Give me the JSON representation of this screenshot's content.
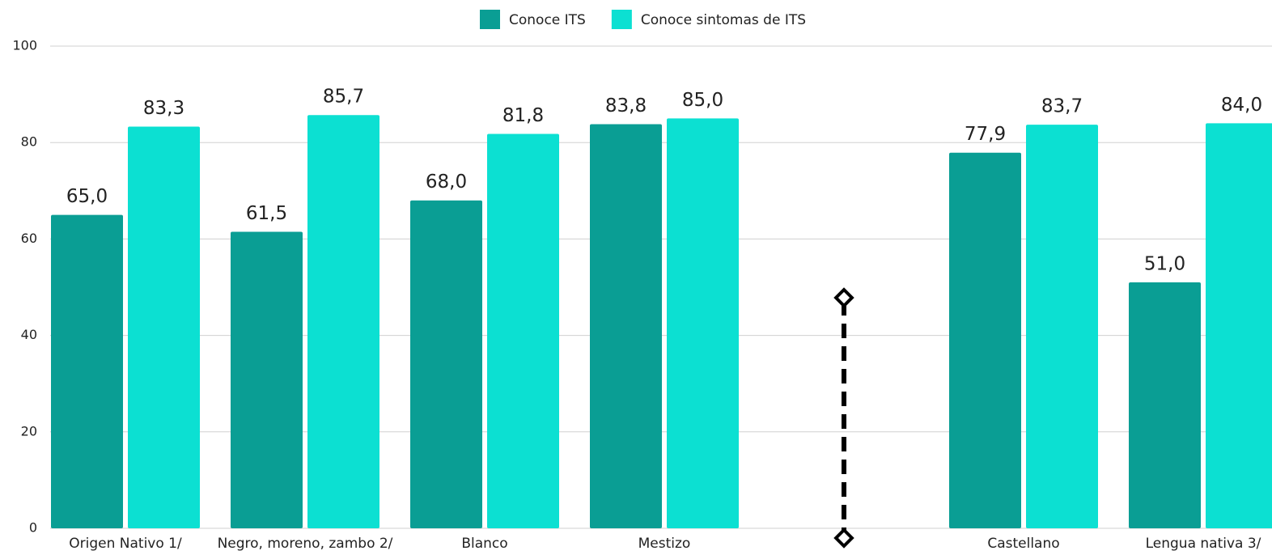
{
  "chart_data": {
    "type": "bar",
    "categories": [
      "Origen Nativo 1/",
      "Negro, moreno, zambo 2/",
      "Blanco",
      "Mestizo",
      null,
      "Castellano",
      "Lengua nativa 3/"
    ],
    "series": [
      {
        "name": "Conoce ITS",
        "color": "#0a9e94",
        "values": [
          65.0,
          61.5,
          68.0,
          83.8,
          null,
          77.9,
          51.0
        ],
        "value_labels": [
          "65,0",
          "61,5",
          "68,0",
          "83,8",
          null,
          "77,9",
          "51,0"
        ]
      },
      {
        "name": "Conoce sintomas de ITS",
        "color": "#0ce0d2",
        "values": [
          83.3,
          85.7,
          81.8,
          85.0,
          null,
          83.7,
          84.0
        ],
        "value_labels": [
          "83,3",
          "85,7",
          "81,8",
          "85,0",
          null,
          "83,7",
          "84,0"
        ]
      }
    ],
    "ylim": [
      0,
      100
    ],
    "yticks": [
      0,
      20,
      40,
      60,
      80,
      100
    ],
    "grid": true,
    "legend": "top"
  }
}
